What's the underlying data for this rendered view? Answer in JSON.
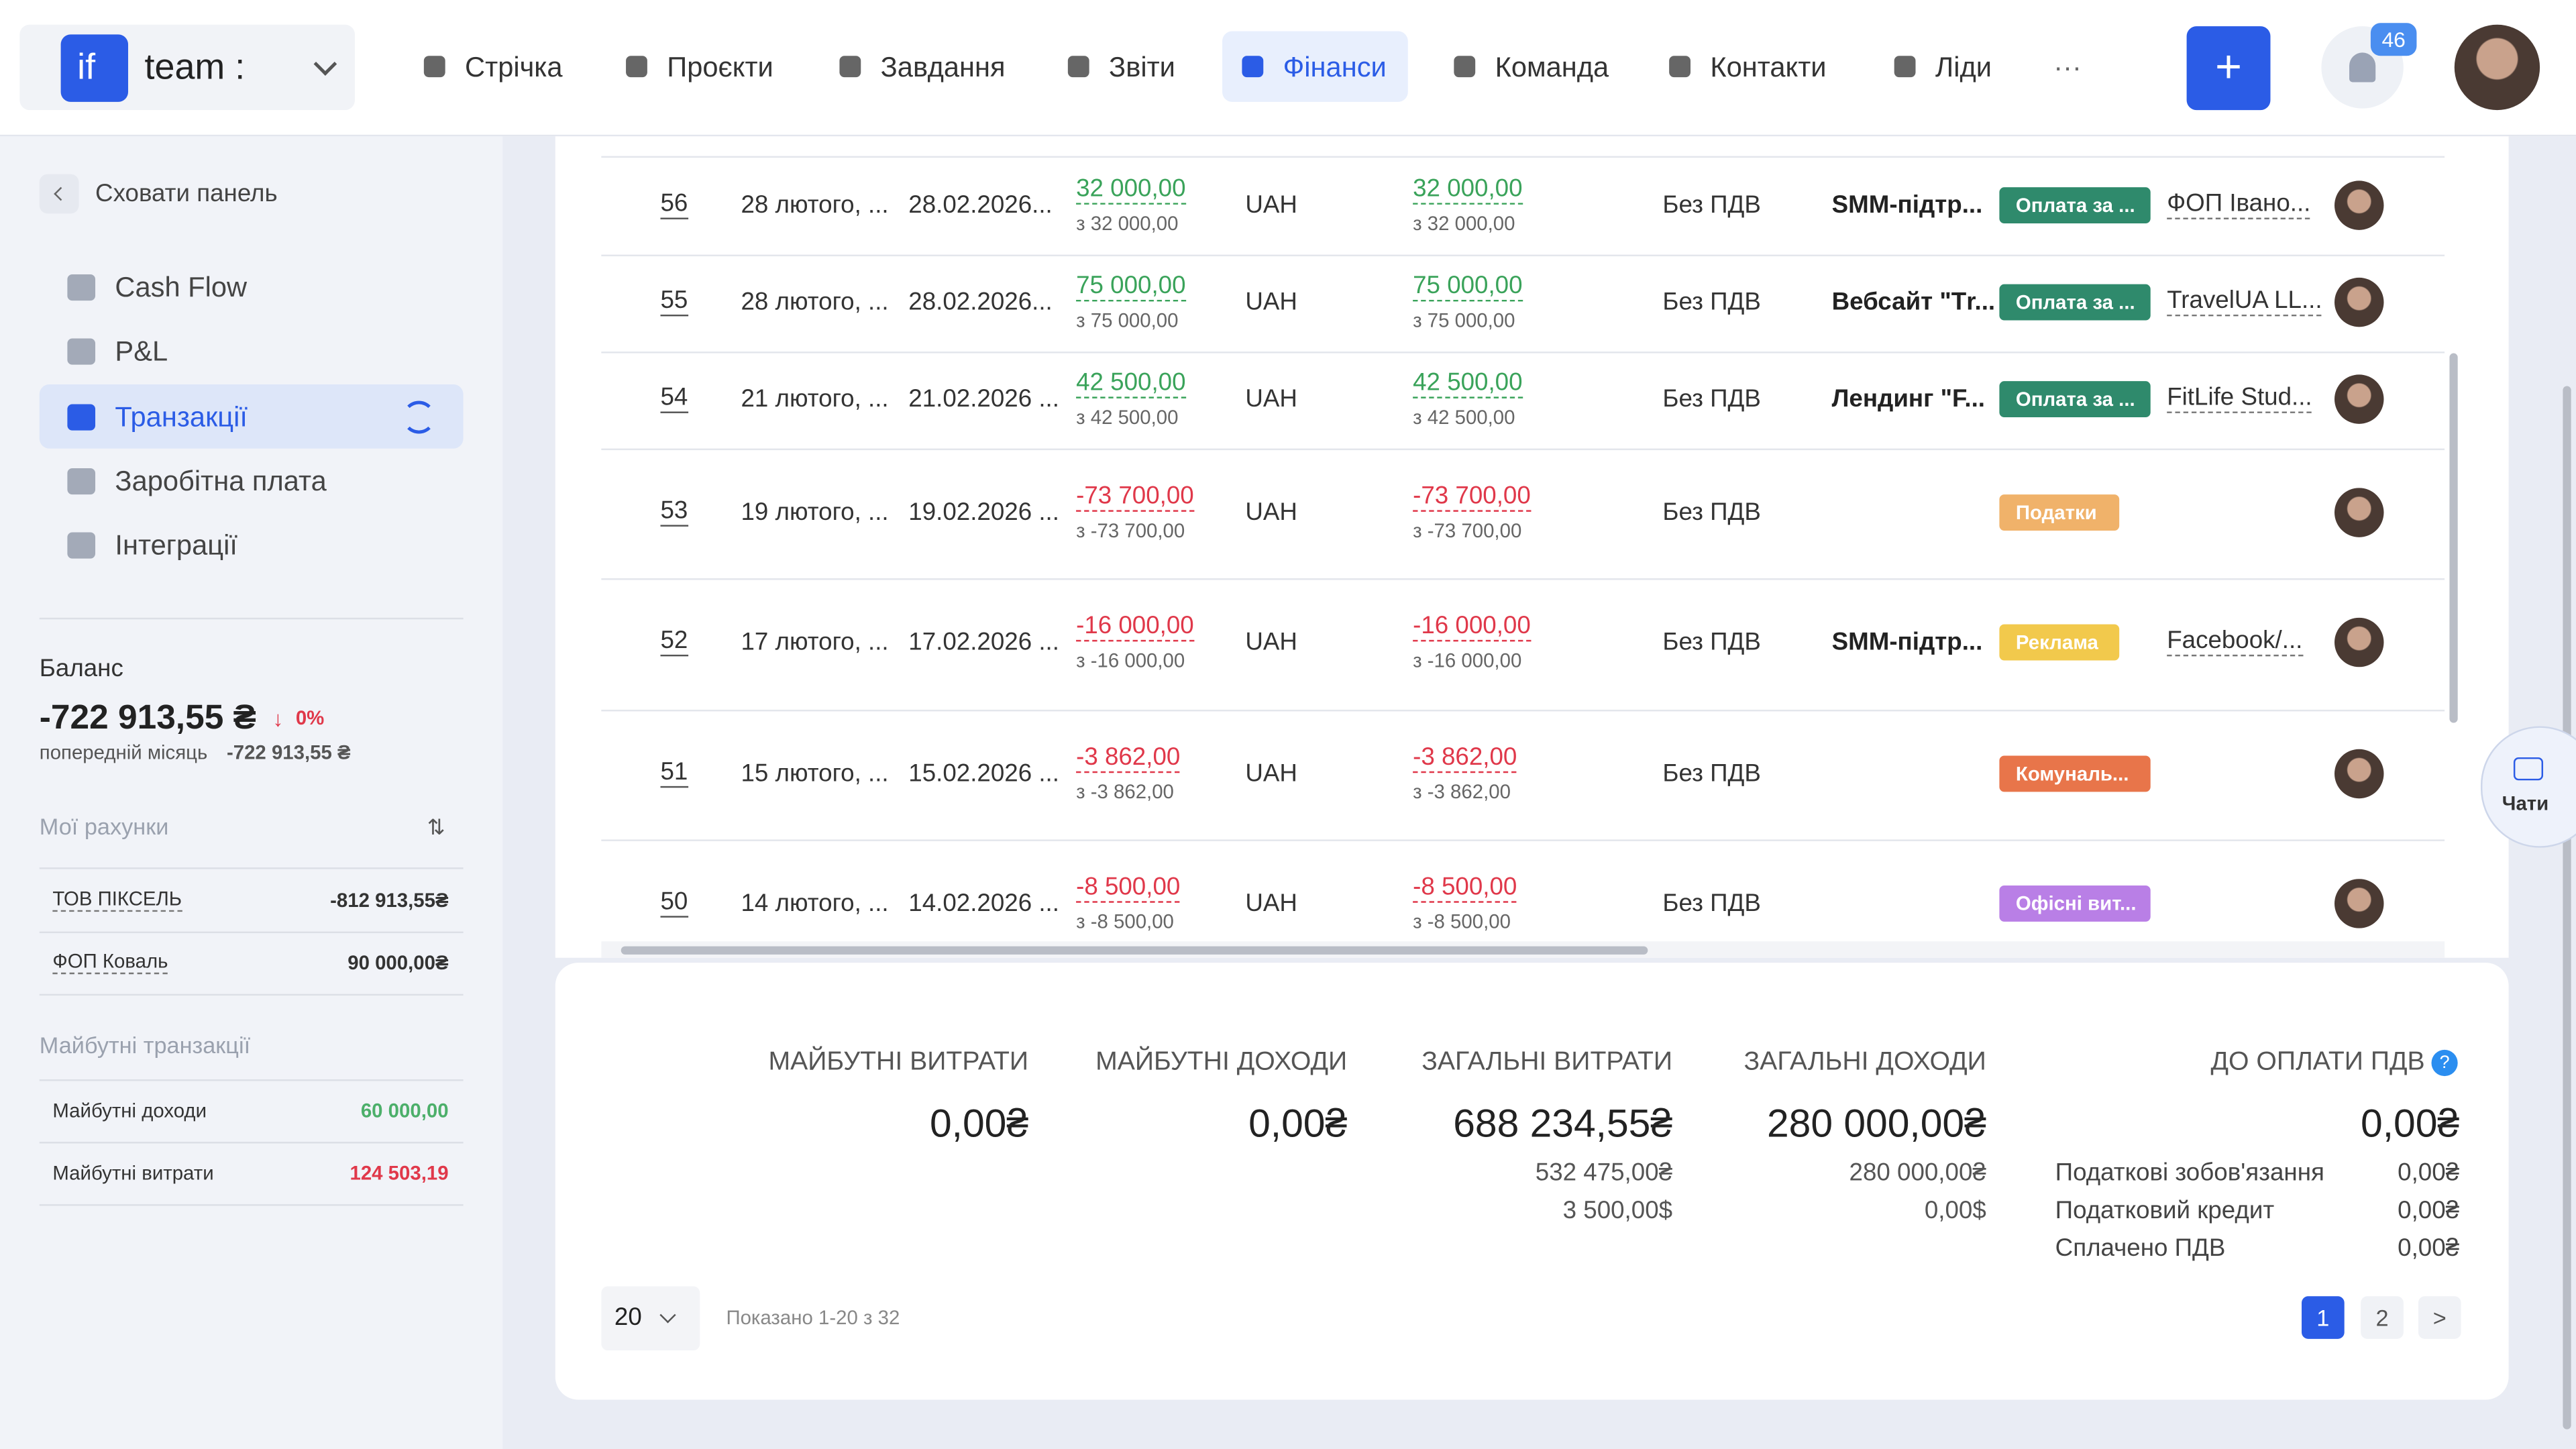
{
  "header": {
    "logo": "if",
    "workspace": "team :",
    "nav": [
      "Стрічка",
      "Проєкти",
      "Завдання",
      "Звіти",
      "Фінанси",
      "Команда",
      "Контакти",
      "Ліди"
    ],
    "active_nav": 4,
    "more": "···",
    "add": "+",
    "notifications": "46"
  },
  "sidebar": {
    "hide": "Сховати панель",
    "menu": [
      "Cash Flow",
      "P&L",
      "Транзакції",
      "Заробітна плата",
      "Інтеграції"
    ],
    "active_menu": 2,
    "balance": {
      "title": "Баланс",
      "amount": "-722 913,55 ₴",
      "change": "0%",
      "prev_label": "попередній місяць",
      "prev_amount": "-722 913,55 ₴"
    },
    "accounts": {
      "title": "Мої рахунки",
      "rows": [
        [
          "ТОВ ПІКСЕЛЬ",
          "-812 913,55₴"
        ],
        [
          "ФОП Коваль",
          "90 000,00₴"
        ]
      ]
    },
    "future": {
      "title": "Майбутні транзакції",
      "rows": [
        [
          "Майбутні доходи",
          "60 000,00"
        ],
        [
          "Майбутні витрати",
          "124 503,19"
        ]
      ],
      "colors": [
        "#4caf6a",
        "#e0384a"
      ]
    }
  },
  "table": {
    "rows": [
      [
        "56",
        "28 лютого, ...",
        "28.02.2026...",
        "32 000,00",
        "з 32 000,00",
        "UAH",
        "32 000,00",
        "з 32 000,00",
        "Без ПДВ",
        "SMM-підтр...",
        "Оплата за ...",
        "ФОП Івано..."
      ],
      [
        "55",
        "28 лютого, ...",
        "28.02.2026...",
        "75 000,00",
        "з 75 000,00",
        "UAH",
        "75 000,00",
        "з 75 000,00",
        "Без ПДВ",
        "Вебсайт \"Тr...",
        "Оплата за ...",
        "TravelUA LL..."
      ],
      [
        "54",
        "21 лютого, ...",
        "21.02.2026 ...",
        "42 500,00",
        "з 42 500,00",
        "UAH",
        "42 500,00",
        "з 42 500,00",
        "Без ПДВ",
        "Лендинг \"F...",
        "Оплата за ...",
        "FitLife Stud..."
      ],
      [
        "53",
        "19 лютого, ...",
        "19.02.2026 ...",
        "-73 700,00",
        "з -73 700,00",
        "UAH",
        "-73 700,00",
        "з -73 700,00",
        "Без ПДВ",
        "",
        "Податки",
        ""
      ],
      [
        "52",
        "17 лютого, ...",
        "17.02.2026 ...",
        "-16 000,00",
        "з -16 000,00",
        "UAH",
        "-16 000,00",
        "з -16 000,00",
        "Без ПДВ",
        "SMM-підтр...",
        "Реклама",
        "Facebook/..."
      ],
      [
        "51",
        "15 лютого, ...",
        "15.02.2026 ...",
        "-3 862,00",
        "з -3 862,00",
        "UAH",
        "-3 862,00",
        "з -3 862,00",
        "Без ПДВ",
        "",
        "Комуналь...",
        ""
      ],
      [
        "50",
        "14 лютого, ...",
        "14.02.2026 ...",
        "-8 500,00",
        "з -8 500,00",
        "UAH",
        "-8 500,00",
        "з -8 500,00",
        "Без ПДВ",
        "",
        "Офісні вит...",
        ""
      ]
    ],
    "category_colors": [
      "#2f8a6c",
      "#2f8a6c",
      "#2f8a6c",
      "#f0b26a",
      "#f2c94c",
      "#e8754a",
      "#b97fe6"
    ]
  },
  "summary": {
    "columns": [
      [
        "МАЙБУТНІ ВИТРАТИ",
        "0,00₴"
      ],
      [
        "МАЙБУТНІ ДОХОДИ",
        "0,00₴"
      ],
      [
        "ЗАГАЛЬНІ ВИТРАТИ",
        "688 234,55₴",
        "532 475,00₴",
        "3 500,00$"
      ],
      [
        "ЗАГАЛЬНІ ДОХОДИ",
        "280 000,00₴",
        "280 000,00₴",
        "0,00$"
      ]
    ],
    "vat": {
      "title": "ДО ОПЛАТИ ПДВ",
      "amount": "0,00₴",
      "rows": [
        [
          "Податкові зобов'язання",
          "0,00₴"
        ],
        [
          "Податковий кредит",
          "0,00₴"
        ],
        [
          "Сплачено ПДВ",
          "0,00₴"
        ]
      ]
    }
  },
  "pagination": {
    "per_page": "20",
    "shown": "Показано 1-20 з 32",
    "pages": [
      "1",
      "2"
    ],
    "next": ">"
  },
  "chat": "Чати"
}
